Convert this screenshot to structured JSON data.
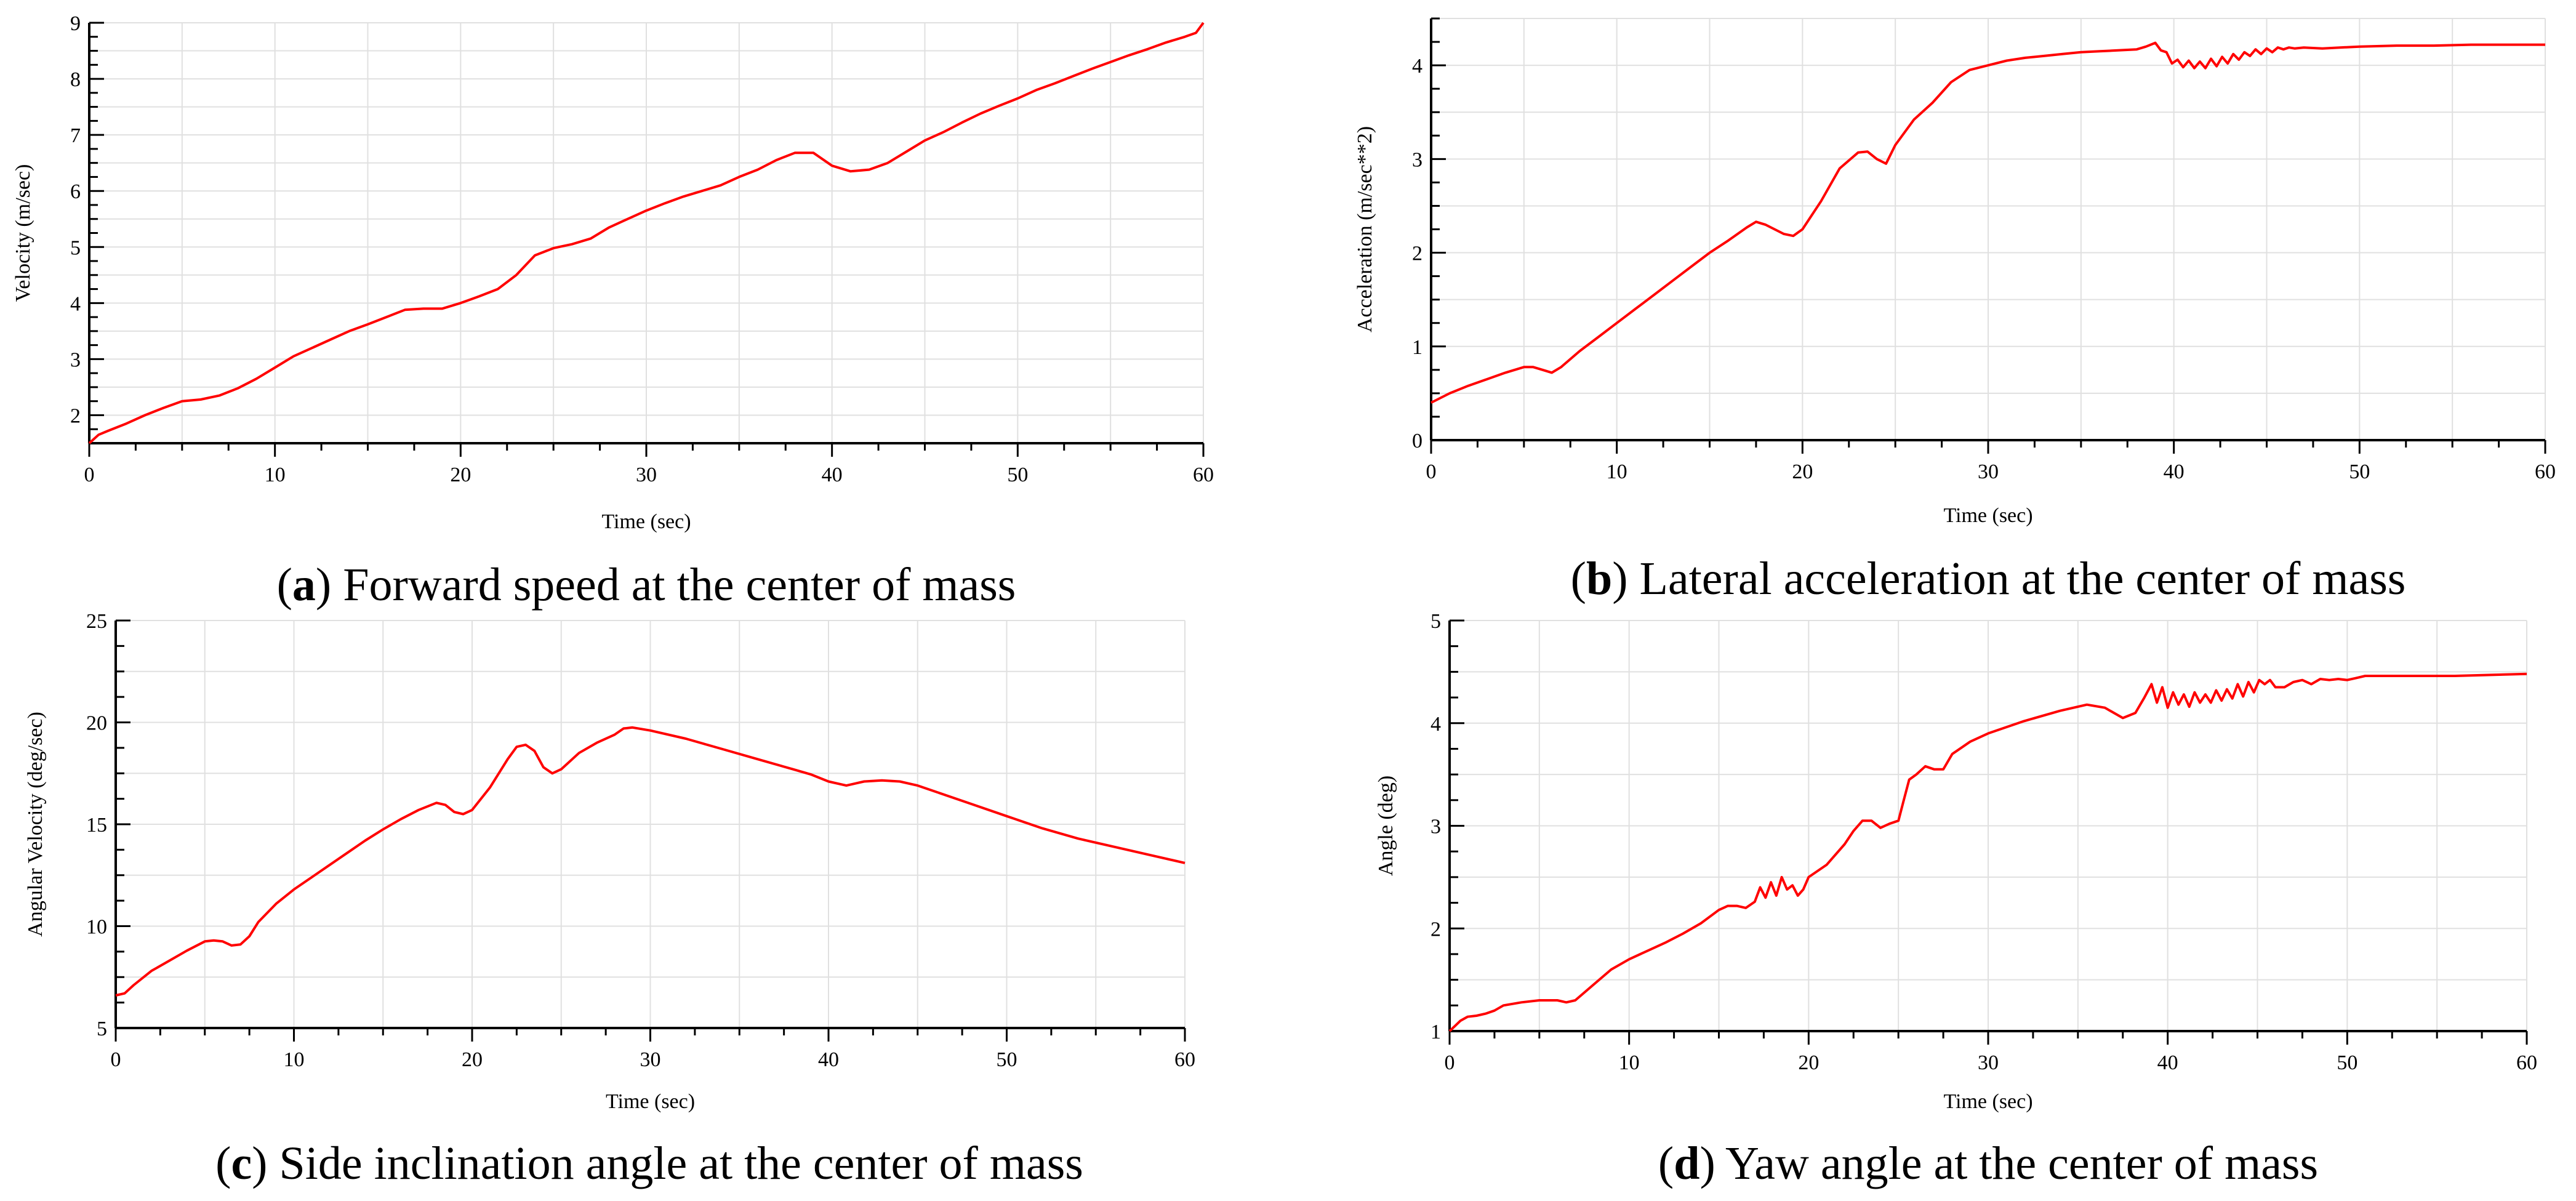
{
  "line_color": "#ff0000",
  "grid_color": "#e0e0e0",
  "axis_color": "#000000",
  "chart_data": [
    {
      "type": "line",
      "id": "a",
      "caption_letter": "a",
      "caption_text": "Forward speed at the center of mass",
      "title": "",
      "xlabel": "Time (sec)",
      "ylabel": "Velocity (m/sec)",
      "xlim": [
        0,
        60
      ],
      "ylim": [
        1.5,
        9
      ],
      "xticks": [
        0,
        10,
        20,
        30,
        40,
        50,
        60
      ],
      "yticks": [
        2,
        3,
        4,
        5,
        6,
        7,
        8,
        9
      ],
      "grid": true,
      "series": [
        {
          "x": [
            0,
            0.5,
            1,
            2,
            3,
            4,
            5,
            6,
            7,
            8,
            9,
            10,
            11,
            12,
            13,
            14,
            15,
            16,
            17,
            18,
            19,
            20,
            21,
            22,
            23,
            24,
            25,
            26,
            27,
            28,
            29,
            30,
            31,
            32,
            33,
            34,
            35,
            36,
            37,
            38,
            39,
            40,
            41,
            42,
            43,
            44,
            45,
            46,
            47,
            48,
            49,
            50,
            51,
            52,
            53,
            54,
            55,
            56,
            57,
            58,
            59,
            59.6,
            60
          ],
          "y": [
            1.5,
            1.65,
            1.72,
            1.85,
            2.0,
            2.13,
            2.25,
            2.28,
            2.35,
            2.48,
            2.65,
            2.85,
            3.05,
            3.2,
            3.35,
            3.5,
            3.62,
            3.75,
            3.88,
            3.9,
            3.9,
            4.0,
            4.12,
            4.25,
            4.5,
            4.85,
            4.98,
            5.05,
            5.15,
            5.35,
            5.5,
            5.65,
            5.78,
            5.9,
            6.0,
            6.1,
            6.25,
            6.38,
            6.55,
            6.68,
            6.68,
            6.45,
            6.35,
            6.38,
            6.5,
            6.7,
            6.9,
            7.05,
            7.22,
            7.38,
            7.52,
            7.65,
            7.8,
            7.92,
            8.05,
            8.18,
            8.3,
            8.42,
            8.53,
            8.65,
            8.75,
            8.82,
            9.0
          ]
        }
      ]
    },
    {
      "type": "line",
      "id": "b",
      "caption_letter": "b",
      "caption_text": "Lateral acceleration at the center of mass",
      "title": "",
      "xlabel": "Time (sec)",
      "ylabel": "Acceleration (m/sec**2)",
      "xlim": [
        0,
        60
      ],
      "ylim": [
        0,
        4.5
      ],
      "xticks": [
        0,
        10,
        20,
        30,
        40,
        50,
        60
      ],
      "yticks": [
        0,
        1,
        2,
        3,
        4
      ],
      "grid": true,
      "series": [
        {
          "x": [
            0,
            1,
            2,
            3,
            4,
            5,
            5.5,
            6,
            6.5,
            7,
            8,
            9,
            10,
            11,
            12,
            13,
            14,
            15,
            16,
            17,
            17.5,
            18,
            18.5,
            19,
            19.5,
            20,
            21,
            22,
            23,
            23.5,
            24,
            24.5,
            25,
            26,
            27,
            28,
            29,
            30,
            31,
            32,
            33,
            34,
            35,
            36,
            37,
            38,
            38.5,
            39,
            39.3,
            39.6,
            39.9,
            40.2,
            40.5,
            40.8,
            41.1,
            41.4,
            41.7,
            42,
            42.3,
            42.6,
            42.9,
            43.2,
            43.5,
            43.8,
            44.1,
            44.4,
            44.7,
            45,
            45.3,
            45.6,
            45.9,
            46.2,
            46.5,
            47,
            48,
            50,
            52,
            54,
            56,
            58,
            60
          ],
          "y": [
            0.4,
            0.5,
            0.58,
            0.65,
            0.72,
            0.78,
            0.78,
            0.75,
            0.72,
            0.78,
            0.95,
            1.1,
            1.25,
            1.4,
            1.55,
            1.7,
            1.85,
            2.0,
            2.13,
            2.27,
            2.33,
            2.3,
            2.25,
            2.2,
            2.18,
            2.25,
            2.55,
            2.9,
            3.07,
            3.08,
            3.0,
            2.95,
            3.15,
            3.42,
            3.6,
            3.82,
            3.95,
            4.0,
            4.05,
            4.08,
            4.1,
            4.12,
            4.14,
            4.15,
            4.16,
            4.17,
            4.2,
            4.24,
            4.16,
            4.14,
            4.02,
            4.06,
            3.98,
            4.05,
            3.97,
            4.04,
            3.97,
            4.07,
            3.99,
            4.09,
            4.02,
            4.12,
            4.06,
            4.14,
            4.1,
            4.17,
            4.12,
            4.18,
            4.14,
            4.19,
            4.17,
            4.19,
            4.18,
            4.19,
            4.18,
            4.2,
            4.21,
            4.21,
            4.22,
            4.22,
            4.22
          ]
        }
      ]
    },
    {
      "type": "line",
      "id": "c",
      "caption_letter": "c",
      "caption_text": "Side inclination angle at the center of mass",
      "title": "",
      "xlabel": "Time (sec)",
      "ylabel": "Angular Velocity (deg/sec)",
      "xlim": [
        0,
        60
      ],
      "ylim": [
        5,
        25
      ],
      "xticks": [
        0,
        10,
        20,
        30,
        40,
        50,
        60
      ],
      "yticks": [
        5,
        10,
        15,
        20,
        25
      ],
      "grid": true,
      "series": [
        {
          "x": [
            0,
            0.5,
            1,
            2,
            3,
            4,
            5,
            5.5,
            6,
            6.5,
            7,
            7.5,
            8,
            9,
            10,
            11,
            12,
            13,
            14,
            15,
            16,
            17,
            18,
            18.5,
            19,
            19.5,
            20,
            21,
            22,
            22.5,
            23,
            23.5,
            24,
            24.5,
            25,
            26,
            27,
            28,
            28.5,
            29,
            30,
            32,
            34,
            36,
            38,
            39,
            40,
            41,
            42,
            43,
            44,
            45,
            46,
            48,
            50,
            52,
            54,
            56,
            58,
            60
          ],
          "y": [
            6.6,
            6.7,
            7.1,
            7.8,
            8.3,
            8.8,
            9.25,
            9.3,
            9.25,
            9.05,
            9.1,
            9.5,
            10.2,
            11.1,
            11.8,
            12.4,
            13.0,
            13.6,
            14.2,
            14.75,
            15.25,
            15.7,
            16.05,
            15.95,
            15.6,
            15.5,
            15.7,
            16.8,
            18.2,
            18.8,
            18.9,
            18.6,
            17.8,
            17.5,
            17.7,
            18.5,
            19.0,
            19.4,
            19.7,
            19.75,
            19.6,
            19.2,
            18.7,
            18.2,
            17.7,
            17.45,
            17.1,
            16.9,
            17.1,
            17.15,
            17.1,
            16.9,
            16.6,
            16.0,
            15.4,
            14.8,
            14.3,
            13.9,
            13.5,
            13.1
          ]
        }
      ]
    },
    {
      "type": "line",
      "id": "d",
      "caption_letter": "d",
      "caption_text": "Yaw angle at the center of mass",
      "title": "",
      "xlabel": "Time (sec)",
      "ylabel": "Angle (deg)",
      "xlim": [
        0,
        60
      ],
      "ylim": [
        1,
        5
      ],
      "xticks": [
        0,
        10,
        20,
        30,
        40,
        50,
        60
      ],
      "yticks": [
        1,
        2,
        3,
        4,
        5
      ],
      "grid": true,
      "series": [
        {
          "x": [
            0,
            0.3,
            0.6,
            1,
            1.5,
            2,
            2.5,
            3,
            4,
            5,
            6,
            6.5,
            7,
            8,
            9,
            10,
            11,
            12,
            13,
            14,
            15,
            15.5,
            16,
            16.5,
            17,
            17.3,
            17.6,
            17.9,
            18.2,
            18.5,
            18.8,
            19.1,
            19.4,
            19.7,
            20,
            21,
            22,
            22.5,
            23,
            23.5,
            24,
            24.5,
            25,
            25.3,
            25.6,
            26,
            26.5,
            27,
            27.5,
            28,
            29,
            30,
            32,
            34,
            35.5,
            36.5,
            37.5,
            38.2,
            38.7,
            39.1,
            39.4,
            39.7,
            40,
            40.3,
            40.6,
            40.9,
            41.2,
            41.5,
            41.8,
            42.1,
            42.4,
            42.7,
            43,
            43.3,
            43.6,
            43.9,
            44.2,
            44.5,
            44.8,
            45.1,
            45.4,
            45.7,
            46,
            46.5,
            47,
            47.5,
            48,
            48.5,
            49,
            49.5,
            50,
            50.5,
            51,
            51.5,
            52,
            53,
            54,
            56,
            58,
            60
          ],
          "y": [
            1.0,
            1.05,
            1.1,
            1.14,
            1.15,
            1.17,
            1.2,
            1.25,
            1.28,
            1.3,
            1.3,
            1.28,
            1.3,
            1.45,
            1.6,
            1.7,
            1.78,
            1.86,
            1.95,
            2.05,
            2.18,
            2.22,
            2.22,
            2.2,
            2.26,
            2.4,
            2.3,
            2.45,
            2.32,
            2.5,
            2.38,
            2.42,
            2.32,
            2.38,
            2.5,
            2.62,
            2.82,
            2.95,
            3.05,
            3.05,
            2.98,
            3.02,
            3.05,
            3.25,
            3.45,
            3.5,
            3.58,
            3.55,
            3.55,
            3.7,
            3.82,
            3.9,
            4.02,
            4.12,
            4.18,
            4.15,
            4.05,
            4.1,
            4.25,
            4.38,
            4.2,
            4.35,
            4.15,
            4.3,
            4.18,
            4.28,
            4.16,
            4.3,
            4.2,
            4.28,
            4.2,
            4.32,
            4.22,
            4.33,
            4.24,
            4.38,
            4.26,
            4.4,
            4.3,
            4.42,
            4.38,
            4.42,
            4.35,
            4.35,
            4.4,
            4.42,
            4.38,
            4.43,
            4.42,
            4.43,
            4.42,
            4.44,
            4.46,
            4.46,
            4.46,
            4.46,
            4.46,
            4.46,
            4.47,
            4.48
          ]
        }
      ]
    }
  ]
}
